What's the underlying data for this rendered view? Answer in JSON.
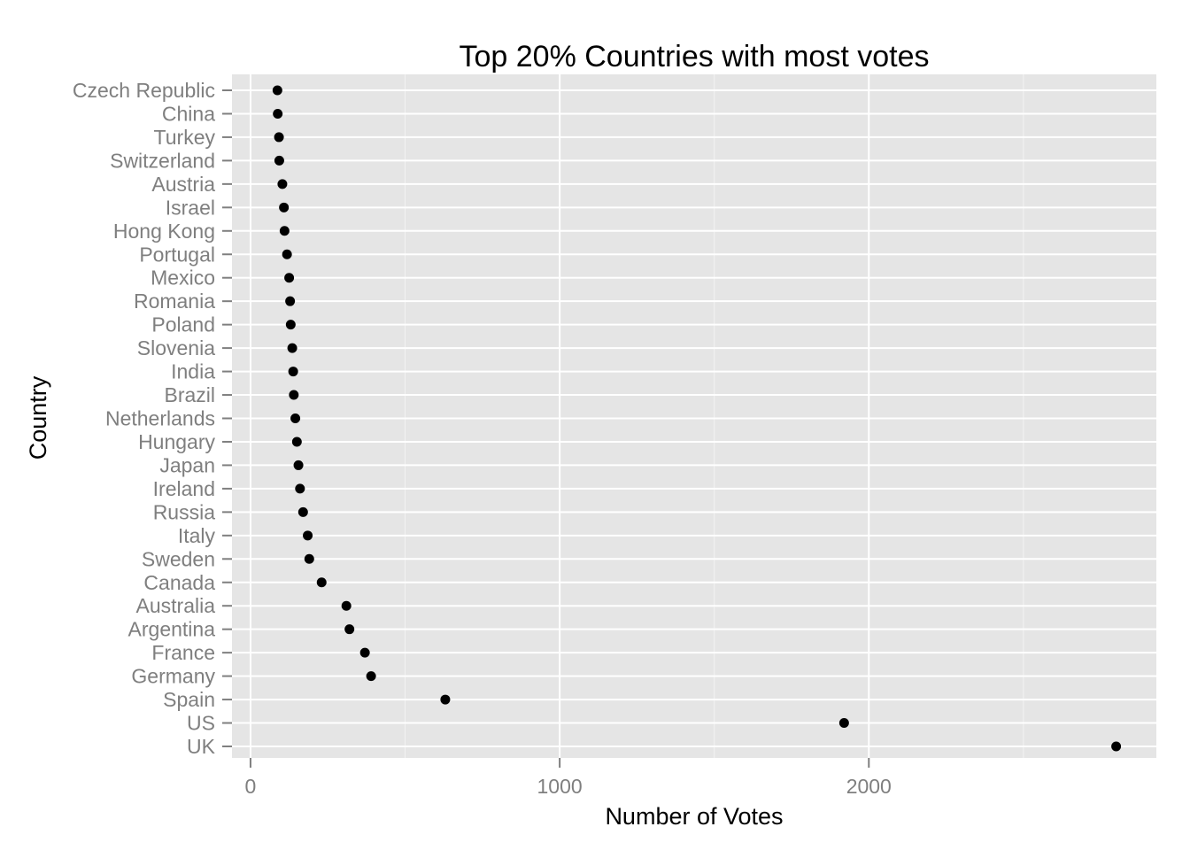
{
  "chart_data": {
    "type": "scatter",
    "title": "Top 20% Countries with most votes",
    "xlabel": "Number of Votes",
    "ylabel": "Country",
    "xlim": [
      -60,
      2930
    ],
    "x_ticks": [
      0,
      1000,
      2000
    ],
    "x_minor_ticks": [
      500,
      1500,
      2500
    ],
    "grid": true,
    "categories": [
      "UK",
      "US",
      "Spain",
      "Germany",
      "France",
      "Argentina",
      "Australia",
      "Canada",
      "Sweden",
      "Italy",
      "Russia",
      "Ireland",
      "Japan",
      "Hungary",
      "Netherlands",
      "Brazil",
      "India",
      "Slovenia",
      "Poland",
      "Romania",
      "Mexico",
      "Portugal",
      "Hong Kong",
      "Israel",
      "Austria",
      "Switzerland",
      "Turkey",
      "China",
      "Czech Republic"
    ],
    "values": [
      2800,
      1920,
      630,
      390,
      370,
      320,
      310,
      230,
      190,
      185,
      170,
      160,
      155,
      150,
      145,
      140,
      138,
      135,
      130,
      128,
      125,
      118,
      110,
      108,
      103,
      93,
      92,
      88,
      87
    ],
    "colors": {
      "panel": "#e5e5e5",
      "grid": "#ffffff",
      "point": "#000000",
      "tick_text": "#7f7f7f"
    }
  }
}
